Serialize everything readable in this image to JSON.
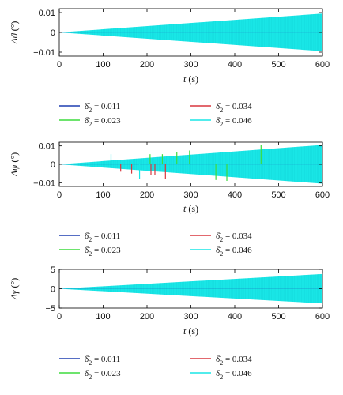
{
  "chart_data": [
    {
      "type": "area",
      "ylabel": "Δϑ (°)",
      "xlabel": "t (s)",
      "xlim": [
        0,
        600
      ],
      "ylim": [
        -0.012,
        0.012
      ],
      "xticks": [
        "0",
        "100",
        "200",
        "300",
        "400",
        "500",
        "600"
      ],
      "yticks": [
        "0.01",
        "0",
        "−0.01"
      ],
      "ytick_values": [
        0.01,
        0,
        -0.01
      ],
      "envelope": {
        "x": [
          0,
          600
        ],
        "upper": [
          0.0,
          0.0095
        ],
        "lower": [
          0.0,
          -0.0095
        ]
      },
      "spikes": [],
      "series": [
        {
          "name": "δ̂₂ = 0.011",
          "color": "#1f3fb0"
        },
        {
          "name": "δ̂₂ = 0.023",
          "color": "#3ddc3d"
        },
        {
          "name": "δ̂₂ = 0.034",
          "color": "#d9363e"
        },
        {
          "name": "δ̂₂ = 0.046",
          "color": "#19e6e6"
        }
      ]
    },
    {
      "type": "area",
      "ylabel": "Δψ (°)",
      "xlabel": "t (s)",
      "xlim": [
        0,
        600
      ],
      "ylim": [
        -0.012,
        0.012
      ],
      "xticks": [
        "0",
        "100",
        "200",
        "300",
        "400",
        "500",
        "600"
      ],
      "yticks": [
        "0.01",
        "0",
        "−0.01"
      ],
      "ytick_values": [
        0.01,
        0,
        -0.01
      ],
      "envelope": {
        "x": [
          0,
          600
        ],
        "upper": [
          0.0,
          0.0105
        ],
        "lower": [
          0.0,
          -0.0105
        ]
      },
      "spikes": [
        {
          "x": 118,
          "y": 0.0055,
          "color": "#19e6e6"
        },
        {
          "x": 140,
          "y": -0.004,
          "color": "#d9363e"
        },
        {
          "x": 165,
          "y": -0.005,
          "color": "#d9363e"
        },
        {
          "x": 183,
          "y": -0.008,
          "color": "#19e6e6"
        },
        {
          "x": 207,
          "y": 0.0055,
          "color": "#3ddc3d"
        },
        {
          "x": 209,
          "y": -0.006,
          "color": "#d9363e"
        },
        {
          "x": 218,
          "y": -0.006,
          "color": "#d9363e"
        },
        {
          "x": 235,
          "y": 0.0055,
          "color": "#3ddc3d"
        },
        {
          "x": 242,
          "y": -0.008,
          "color": "#d9363e"
        },
        {
          "x": 268,
          "y": 0.0065,
          "color": "#3ddc3d"
        },
        {
          "x": 297,
          "y": 0.0075,
          "color": "#3ddc3d"
        },
        {
          "x": 357,
          "y": -0.0085,
          "color": "#3ddc3d"
        },
        {
          "x": 382,
          "y": -0.009,
          "color": "#3ddc3d"
        },
        {
          "x": 460,
          "y": 0.0105,
          "color": "#3ddc3d"
        }
      ],
      "series": [
        {
          "name": "δ̂₂ = 0.011",
          "color": "#1f3fb0"
        },
        {
          "name": "δ̂₂ = 0.023",
          "color": "#3ddc3d"
        },
        {
          "name": "δ̂₂ = 0.034",
          "color": "#d9363e"
        },
        {
          "name": "δ̂₂ = 0.046",
          "color": "#19e6e6"
        }
      ]
    },
    {
      "type": "area",
      "ylabel": "Δγ (°)",
      "xlabel": "t (s)",
      "xlim": [
        0,
        600
      ],
      "ylim": [
        -5,
        5
      ],
      "xticks": [
        "0",
        "100",
        "200",
        "300",
        "400",
        "500",
        "600"
      ],
      "yticks": [
        "5",
        "0",
        "−5"
      ],
      "ytick_values": [
        5,
        0,
        -5
      ],
      "envelope": {
        "x": [
          0,
          600
        ],
        "upper": [
          0.0,
          3.8
        ],
        "lower": [
          0.0,
          -3.8
        ]
      },
      "spikes": [],
      "series": [
        {
          "name": "δ̂₂ = 0.011",
          "color": "#1f3fb0"
        },
        {
          "name": "δ̂₂ = 0.023",
          "color": "#3ddc3d"
        },
        {
          "name": "δ̂₂ = 0.034",
          "color": "#d9363e"
        },
        {
          "name": "δ̂₂ = 0.046",
          "color": "#19e6e6"
        }
      ]
    }
  ]
}
